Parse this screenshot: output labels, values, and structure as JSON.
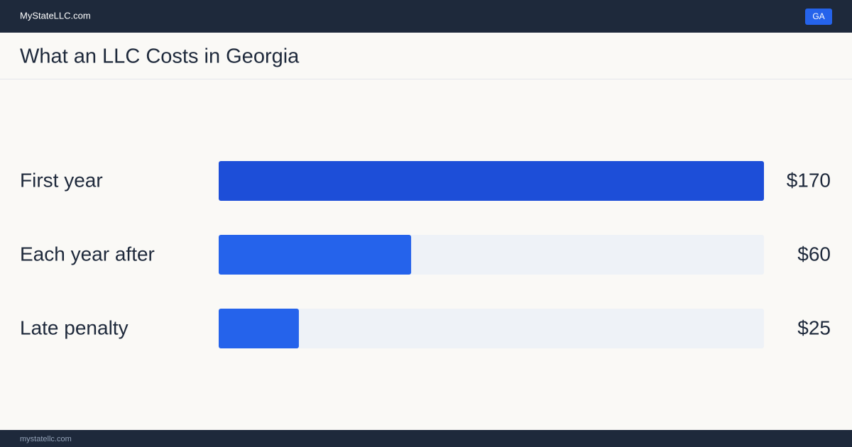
{
  "header": {
    "site": "MyStateLLC.com",
    "badge": "GA"
  },
  "chart_data": {
    "type": "bar",
    "orientation": "horizontal",
    "title": "What an LLC Costs in Georgia",
    "categories": [
      "First year",
      "Each year after",
      "Late penalty"
    ],
    "values": [
      170,
      60,
      25
    ],
    "value_labels": [
      "$170",
      "$60",
      "$25"
    ],
    "colors": [
      "#1d4ed8",
      "#2563eb",
      "#2563eb"
    ],
    "xlim": [
      0,
      170
    ]
  },
  "footer": {
    "site": "mystatellc.com"
  }
}
